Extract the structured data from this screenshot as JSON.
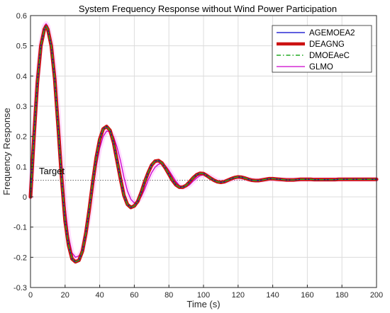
{
  "chart_data": {
    "type": "line",
    "title": "System Frequency Response without Wind Power Participation",
    "xlabel": "Time (s)",
    "ylabel": "Frequency Response",
    "xlim": [
      0,
      200
    ],
    "ylim": [
      -0.3,
      0.6
    ],
    "xticks": [
      "0",
      "20",
      "40",
      "60",
      "80",
      "100",
      "120",
      "140",
      "160",
      "180",
      "200"
    ],
    "yticks": [
      "-0.3",
      "-0.2",
      "-0.1",
      "0",
      "0.1",
      "0.2",
      "0.3",
      "0.4",
      "0.5",
      "0.6"
    ],
    "grid": true,
    "legend_position": "top-right",
    "annotation": {
      "text": "Target",
      "y": 0.055
    },
    "series": [
      {
        "name": "AGEMOEA2",
        "color": "#0000cc",
        "style": "solid",
        "x": [
          0,
          2,
          4,
          6,
          8,
          9,
          10,
          12,
          14,
          16,
          18,
          20,
          22,
          24,
          26,
          28,
          30,
          32,
          34,
          36,
          38,
          40,
          42,
          44,
          46,
          48,
          50,
          52,
          54,
          56,
          58,
          60,
          62,
          64,
          66,
          68,
          70,
          72,
          74,
          76,
          78,
          80,
          82,
          84,
          86,
          88,
          90,
          92,
          94,
          96,
          98,
          100,
          102,
          104,
          106,
          108,
          110,
          112,
          114,
          116,
          118,
          120,
          122,
          124,
          126,
          128,
          130,
          132,
          134,
          136,
          138,
          140,
          142,
          144,
          146,
          148,
          150,
          152,
          154,
          156,
          158,
          160,
          162,
          164,
          166,
          168,
          170,
          172,
          174,
          176,
          178,
          180,
          182,
          184,
          186,
          188,
          190,
          192,
          194,
          196,
          198,
          200
        ],
        "y": [
          0.0,
          0.2,
          0.38,
          0.5,
          0.555,
          0.565,
          0.555,
          0.5,
          0.39,
          0.23,
          0.06,
          -0.08,
          -0.16,
          -0.205,
          -0.215,
          -0.21,
          -0.18,
          -0.12,
          -0.04,
          0.05,
          0.13,
          0.19,
          0.225,
          0.233,
          0.22,
          0.18,
          0.12,
          0.06,
          0.005,
          -0.025,
          -0.035,
          -0.03,
          -0.015,
          0.015,
          0.05,
          0.08,
          0.105,
          0.118,
          0.12,
          0.112,
          0.095,
          0.075,
          0.055,
          0.04,
          0.032,
          0.032,
          0.038,
          0.05,
          0.063,
          0.073,
          0.078,
          0.077,
          0.07,
          0.062,
          0.055,
          0.05,
          0.048,
          0.05,
          0.055,
          0.06,
          0.064,
          0.066,
          0.065,
          0.062,
          0.058,
          0.055,
          0.054,
          0.054,
          0.056,
          0.058,
          0.06,
          0.06,
          0.059,
          0.058,
          0.057,
          0.056,
          0.056,
          0.056,
          0.057,
          0.058,
          0.058,
          0.058,
          0.058,
          0.057,
          0.057,
          0.057,
          0.057,
          0.057,
          0.057,
          0.057,
          0.058,
          0.058,
          0.058,
          0.058,
          0.058,
          0.058,
          0.058,
          0.058,
          0.058,
          0.058,
          0.058,
          0.058
        ]
      },
      {
        "name": "DEAGNG",
        "color": "#cc1111",
        "style": "solid-thick",
        "x": [
          0,
          2,
          4,
          6,
          8,
          9,
          10,
          12,
          14,
          16,
          18,
          20,
          22,
          24,
          26,
          28,
          30,
          32,
          34,
          36,
          38,
          40,
          42,
          44,
          46,
          48,
          50,
          52,
          54,
          56,
          58,
          60,
          62,
          64,
          66,
          68,
          70,
          72,
          74,
          76,
          78,
          80,
          82,
          84,
          86,
          88,
          90,
          92,
          94,
          96,
          98,
          100,
          102,
          104,
          106,
          108,
          110,
          112,
          114,
          116,
          118,
          120,
          122,
          124,
          126,
          128,
          130,
          132,
          134,
          136,
          138,
          140,
          142,
          144,
          146,
          148,
          150,
          152,
          154,
          156,
          158,
          160,
          162,
          164,
          166,
          168,
          170,
          172,
          174,
          176,
          178,
          180,
          182,
          184,
          186,
          188,
          190,
          192,
          194,
          196,
          198,
          200
        ],
        "y": [
          0.0,
          0.2,
          0.38,
          0.5,
          0.555,
          0.565,
          0.555,
          0.5,
          0.39,
          0.23,
          0.06,
          -0.08,
          -0.16,
          -0.205,
          -0.215,
          -0.21,
          -0.18,
          -0.12,
          -0.04,
          0.05,
          0.13,
          0.19,
          0.225,
          0.233,
          0.22,
          0.18,
          0.12,
          0.06,
          0.005,
          -0.025,
          -0.035,
          -0.03,
          -0.015,
          0.015,
          0.05,
          0.08,
          0.105,
          0.118,
          0.12,
          0.112,
          0.095,
          0.075,
          0.055,
          0.04,
          0.032,
          0.032,
          0.038,
          0.05,
          0.063,
          0.073,
          0.078,
          0.077,
          0.07,
          0.062,
          0.055,
          0.05,
          0.048,
          0.05,
          0.055,
          0.06,
          0.064,
          0.066,
          0.065,
          0.062,
          0.058,
          0.055,
          0.054,
          0.054,
          0.056,
          0.058,
          0.06,
          0.06,
          0.059,
          0.058,
          0.057,
          0.056,
          0.056,
          0.056,
          0.057,
          0.058,
          0.058,
          0.058,
          0.058,
          0.057,
          0.057,
          0.057,
          0.057,
          0.057,
          0.057,
          0.057,
          0.058,
          0.058,
          0.058,
          0.058,
          0.058,
          0.058,
          0.058,
          0.058,
          0.058,
          0.058,
          0.058,
          0.058
        ]
      },
      {
        "name": "DMOEAeC",
        "color": "#22aa22",
        "style": "dashdot",
        "x": [
          0,
          2,
          4,
          6,
          8,
          9,
          10,
          12,
          14,
          16,
          18,
          20,
          22,
          24,
          26,
          28,
          30,
          32,
          34,
          36,
          38,
          40,
          42,
          44,
          46,
          48,
          50,
          52,
          54,
          56,
          58,
          60,
          62,
          64,
          66,
          68,
          70,
          72,
          74,
          76,
          78,
          80,
          82,
          84,
          86,
          88,
          90,
          92,
          94,
          96,
          98,
          100,
          102,
          104,
          106,
          108,
          110,
          112,
          114,
          116,
          118,
          120,
          122,
          124,
          126,
          128,
          130,
          132,
          134,
          136,
          138,
          140,
          142,
          144,
          146,
          148,
          150,
          152,
          154,
          156,
          158,
          160,
          162,
          164,
          166,
          168,
          170,
          172,
          174,
          176,
          178,
          180,
          182,
          184,
          186,
          188,
          190,
          192,
          194,
          196,
          198,
          200
        ],
        "y": [
          0.0,
          0.2,
          0.38,
          0.5,
          0.555,
          0.565,
          0.555,
          0.5,
          0.39,
          0.23,
          0.06,
          -0.08,
          -0.16,
          -0.205,
          -0.215,
          -0.21,
          -0.18,
          -0.12,
          -0.04,
          0.05,
          0.13,
          0.19,
          0.225,
          0.233,
          0.22,
          0.18,
          0.12,
          0.06,
          0.005,
          -0.025,
          -0.035,
          -0.03,
          -0.015,
          0.015,
          0.05,
          0.08,
          0.105,
          0.118,
          0.12,
          0.112,
          0.095,
          0.075,
          0.055,
          0.04,
          0.032,
          0.032,
          0.038,
          0.05,
          0.063,
          0.073,
          0.078,
          0.077,
          0.07,
          0.062,
          0.055,
          0.05,
          0.048,
          0.05,
          0.055,
          0.06,
          0.064,
          0.066,
          0.065,
          0.062,
          0.058,
          0.055,
          0.054,
          0.054,
          0.056,
          0.058,
          0.06,
          0.06,
          0.059,
          0.058,
          0.057,
          0.056,
          0.056,
          0.056,
          0.057,
          0.058,
          0.058,
          0.058,
          0.058,
          0.057,
          0.057,
          0.057,
          0.057,
          0.057,
          0.057,
          0.057,
          0.058,
          0.058,
          0.058,
          0.058,
          0.058,
          0.058,
          0.058,
          0.058,
          0.058,
          0.058,
          0.058,
          0.058
        ]
      },
      {
        "name": "GLMO",
        "color": "#cc00cc",
        "style": "solid",
        "x": [
          0,
          2,
          4,
          6,
          8,
          9,
          10,
          12,
          14,
          16,
          18,
          20,
          22,
          24,
          26,
          28,
          30,
          32,
          34,
          36,
          38,
          40,
          42,
          44,
          46,
          48,
          50,
          52,
          54,
          56,
          58,
          60,
          62,
          64,
          66,
          68,
          70,
          72,
          74,
          76,
          78,
          80,
          82,
          84,
          86,
          88,
          90,
          92,
          94,
          96,
          98,
          100,
          102,
          104,
          106,
          108,
          110,
          112,
          114,
          116,
          118,
          120,
          122,
          124,
          126,
          128,
          130,
          132,
          134,
          136,
          138,
          140,
          142,
          144,
          146,
          148,
          150,
          152,
          154,
          156,
          158,
          160,
          162,
          164,
          166,
          168,
          170,
          172,
          174,
          176,
          178,
          180,
          182,
          184,
          186,
          188,
          190,
          192,
          194,
          196,
          198,
          200
        ],
        "y": [
          0.0,
          0.21,
          0.39,
          0.51,
          0.565,
          0.573,
          0.565,
          0.515,
          0.42,
          0.28,
          0.12,
          -0.03,
          -0.13,
          -0.185,
          -0.2,
          -0.195,
          -0.175,
          -0.125,
          -0.06,
          0.02,
          0.1,
          0.16,
          0.2,
          0.218,
          0.215,
          0.2,
          0.165,
          0.12,
          0.065,
          0.02,
          -0.008,
          -0.02,
          -0.015,
          0.0,
          0.025,
          0.055,
          0.08,
          0.098,
          0.108,
          0.11,
          0.103,
          0.088,
          0.07,
          0.052,
          0.038,
          0.032,
          0.033,
          0.04,
          0.052,
          0.062,
          0.07,
          0.073,
          0.072,
          0.067,
          0.06,
          0.054,
          0.051,
          0.051,
          0.053,
          0.057,
          0.061,
          0.063,
          0.063,
          0.061,
          0.058,
          0.056,
          0.055,
          0.055,
          0.056,
          0.057,
          0.058,
          0.058,
          0.058,
          0.057,
          0.057,
          0.057,
          0.057,
          0.057,
          0.057,
          0.058,
          0.058,
          0.058,
          0.058,
          0.058,
          0.058,
          0.058,
          0.058,
          0.058,
          0.058,
          0.058,
          0.058,
          0.058,
          0.058,
          0.058,
          0.058,
          0.058,
          0.058,
          0.058,
          0.058,
          0.058,
          0.058,
          0.058
        ]
      }
    ]
  }
}
